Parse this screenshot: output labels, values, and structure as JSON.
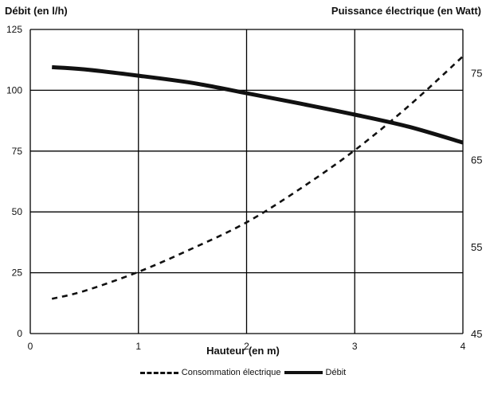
{
  "chart_data": {
    "type": "line",
    "ylabel_left": "Débit (en l/h)",
    "ylabel_right": "Puissance électrique (en Watt)",
    "xlabel": "Hauteur (en m)",
    "xlim": [
      0,
      4
    ],
    "ylim_left": [
      0,
      125
    ],
    "ylim_right": [
      45,
      80
    ],
    "x_ticks": [
      "0",
      "1",
      "2",
      "3",
      "4"
    ],
    "y_left_ticks": [
      "0",
      "25",
      "50",
      "75",
      "100",
      "125"
    ],
    "y_right_ticks": [
      "45",
      "55",
      "65",
      "75"
    ],
    "grid": true,
    "legend_position": "bottom",
    "series": [
      {
        "name": "Consommation électrique",
        "axis": "right",
        "style": "dashed",
        "color": "#111111",
        "x": [
          0.2,
          0.5,
          1.0,
          1.5,
          2.0,
          2.5,
          3.0,
          3.5,
          4.0
        ],
        "values": [
          49.0,
          49.9,
          52.1,
          54.8,
          57.8,
          61.7,
          66.1,
          71.2,
          76.9
        ]
      },
      {
        "name": "Débit",
        "axis": "left",
        "style": "solid",
        "color": "#111111",
        "x": [
          0.2,
          0.5,
          1.0,
          1.5,
          2.0,
          2.5,
          3.0,
          3.5,
          4.0
        ],
        "values": [
          109.5,
          108.6,
          106.0,
          103.0,
          98.8,
          94.5,
          90.0,
          85.0,
          78.5
        ]
      }
    ]
  }
}
